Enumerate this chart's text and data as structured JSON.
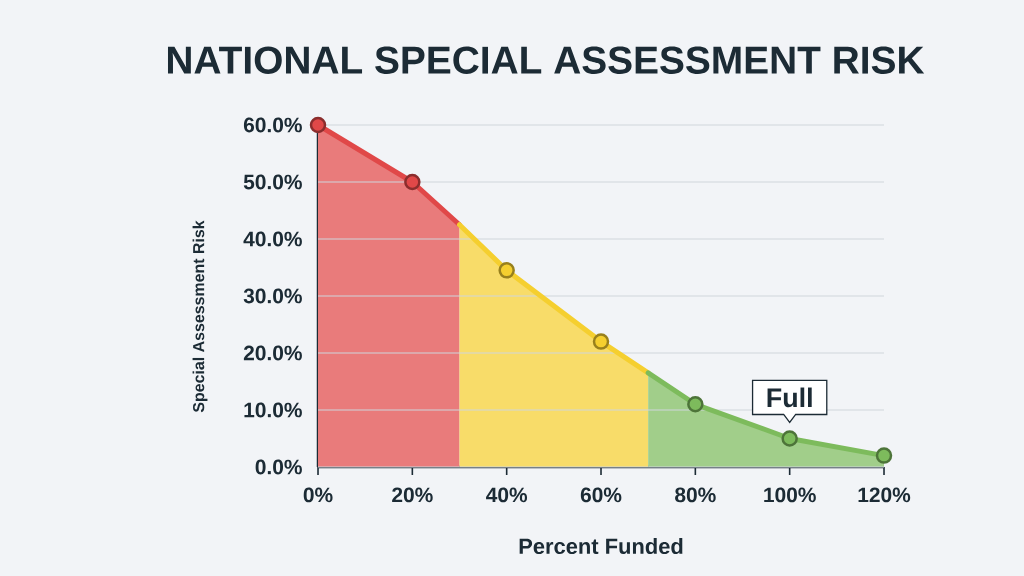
{
  "chart_data": {
    "type": "area",
    "title": "NATIONAL SPECIAL ASSESSMENT RISK",
    "xlabel": "Percent Funded",
    "ylabel": "Special Assessment Risk",
    "series": [
      {
        "color": "#e04848",
        "marker": "none",
        "x": [
          0,
          20,
          30
        ],
        "values": [
          60,
          50,
          42.5
        ]
      },
      {
        "color": "#f5cf2f",
        "marker": "none",
        "x": [
          30,
          40,
          60,
          70
        ],
        "values": [
          42.5,
          34.5,
          22,
          16.5
        ]
      },
      {
        "color": "#7dbb5c",
        "marker": "none",
        "x": [
          70,
          80,
          100,
          120
        ],
        "values": [
          16.5,
          11,
          5,
          2
        ]
      },
      {
        "type": "scatter",
        "x": [
          0,
          20,
          40,
          60,
          80,
          100,
          120
        ],
        "values": [
          60,
          50,
          34.5,
          22,
          11,
          5,
          2
        ],
        "colors": [
          "#e04848",
          "#e04848",
          "#f5cf2f",
          "#f5cf2f",
          "#7dbb5c",
          "#7dbb5c",
          "#7dbb5c"
        ]
      }
    ],
    "xlim": [
      0,
      120
    ],
    "ylim": [
      0,
      60
    ],
    "xticks": [
      {
        "value": 0,
        "label": "0%"
      },
      {
        "value": 20,
        "label": "20%"
      },
      {
        "value": 40,
        "label": "40%"
      },
      {
        "value": 60,
        "label": "60%"
      },
      {
        "value": 80,
        "label": "80%"
      },
      {
        "value": 100,
        "label": "100%"
      },
      {
        "value": 120,
        "label": "120%"
      }
    ],
    "yticks": [
      {
        "value": 0,
        "label": "0.0%"
      },
      {
        "value": 10,
        "label": "10.0%"
      },
      {
        "value": 20,
        "label": "20.0%"
      },
      {
        "value": 30,
        "label": "30.0%"
      },
      {
        "value": 40,
        "label": "40.0%"
      },
      {
        "value": 50,
        "label": "50.0%"
      },
      {
        "value": 60,
        "label": "60.0%"
      }
    ],
    "grid": "y",
    "marker": "circle",
    "line_style": "solid",
    "annotations": [
      {
        "text": "Full",
        "x": 100,
        "y": 5
      }
    ]
  }
}
